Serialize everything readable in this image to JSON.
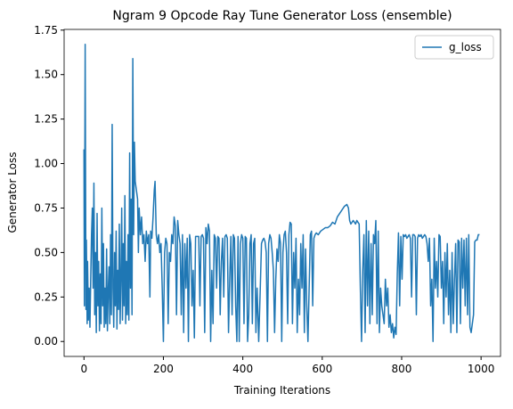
{
  "chart_data": {
    "type": "line",
    "title": "Ngram 9 Opcode Ray Tune Generator Loss (ensemble)",
    "x_label": "Training Iterations",
    "y_label": "Generator Loss",
    "legend": "upper right",
    "x": [
      0,
      1,
      3,
      5,
      6,
      8,
      9,
      11,
      13,
      15,
      17,
      19,
      21,
      23,
      25,
      27,
      29,
      31,
      33,
      35,
      37,
      39,
      41,
      43,
      45,
      47,
      49,
      51,
      53,
      55,
      57,
      59,
      61,
      63,
      65,
      67,
      69,
      71,
      73,
      75,
      77,
      79,
      81,
      83,
      85,
      87,
      89,
      91,
      93,
      95,
      97,
      99,
      101,
      103,
      105,
      107,
      109,
      111,
      113,
      115,
      117,
      119,
      121,
      123,
      125,
      127,
      129,
      132,
      135,
      137,
      139,
      142,
      145,
      148,
      151,
      154,
      157,
      160,
      163,
      166,
      168,
      171,
      174,
      177,
      179,
      182,
      185,
      188,
      191,
      194,
      197,
      200,
      203,
      206,
      209,
      212,
      215,
      218,
      221,
      224,
      227,
      230,
      233,
      236,
      239,
      242,
      245,
      248,
      251,
      254,
      257,
      260,
      263,
      266,
      269,
      272,
      275,
      278,
      281,
      285,
      289,
      292,
      295,
      298,
      301,
      304,
      307,
      310,
      313,
      316,
      319,
      322,
      325,
      328,
      331,
      334,
      337,
      340,
      343,
      346,
      349,
      352,
      355,
      358,
      361,
      364,
      367,
      370,
      373,
      376,
      379,
      382,
      385,
      388,
      391,
      394,
      397,
      400,
      403,
      406,
      409,
      412,
      415,
      418,
      421,
      424,
      427,
      430,
      433,
      436,
      440,
      444,
      447,
      450,
      453,
      456,
      459,
      462,
      465,
      468,
      471,
      474,
      477,
      480,
      483,
      486,
      489,
      492,
      495,
      498,
      501,
      504,
      507,
      510,
      513,
      516,
      519,
      522,
      525,
      528,
      531,
      534,
      537,
      540,
      543,
      546,
      549,
      552,
      555,
      558,
      561,
      564,
      567,
      570,
      573,
      576,
      579,
      582,
      585,
      590,
      596,
      602,
      608,
      614,
      620,
      626,
      632,
      638,
      644,
      650,
      656,
      662,
      666,
      669,
      672,
      675,
      678,
      681,
      684,
      687,
      690,
      693,
      696,
      699,
      702,
      705,
      708,
      711,
      714,
      717,
      720,
      723,
      726,
      729,
      732,
      735,
      738,
      741,
      744,
      747,
      750,
      753,
      756,
      759,
      762,
      765,
      768,
      771,
      774,
      777,
      780,
      783,
      786,
      789,
      792,
      795,
      798,
      801,
      804,
      807,
      810,
      813,
      816,
      819,
      822,
      825,
      828,
      831,
      834,
      837,
      840,
      843,
      846,
      849,
      852,
      855,
      858,
      861,
      864,
      867,
      870,
      873,
      876,
      879,
      882,
      885,
      888,
      891,
      894,
      897,
      900,
      903,
      906,
      909,
      912,
      915,
      918,
      921,
      924,
      927,
      930,
      933,
      936,
      939,
      942,
      945,
      948,
      951,
      954,
      957,
      960,
      963,
      966,
      969,
      972,
      975,
      978,
      981,
      984,
      987,
      990,
      993,
      996
    ],
    "series": [
      {
        "name": "g_loss",
        "color": "#1f77b4",
        "values": [
          1.08,
          0.2,
          1.67,
          0.18,
          0.57,
          0.1,
          0.45,
          0.12,
          0.3,
          0.08,
          0.35,
          0.6,
          0.75,
          0.3,
          0.89,
          0.15,
          0.5,
          0.05,
          0.72,
          0.2,
          0.45,
          0.06,
          0.38,
          0.1,
          0.75,
          0.2,
          0.55,
          0.08,
          0.3,
          0.1,
          0.52,
          0.06,
          0.28,
          0.42,
          0.1,
          0.6,
          0.15,
          1.22,
          0.3,
          0.08,
          0.5,
          0.2,
          0.62,
          0.07,
          0.4,
          0.18,
          0.66,
          0.1,
          0.35,
          0.75,
          0.12,
          0.55,
          0.2,
          0.82,
          0.1,
          0.45,
          0.15,
          0.6,
          0.12,
          1.06,
          0.3,
          0.8,
          0.15,
          1.59,
          0.6,
          1.12,
          0.9,
          0.85,
          0.8,
          0.5,
          0.75,
          0.6,
          0.7,
          0.55,
          0.6,
          0.45,
          0.62,
          0.55,
          0.6,
          0.25,
          0.62,
          0.58,
          0.7,
          0.85,
          0.9,
          0.6,
          0.55,
          0.6,
          0.5,
          0.55,
          0.3,
          0.0,
          0.5,
          0.58,
          0.55,
          0.1,
          0.5,
          0.45,
          0.6,
          0.55,
          0.7,
          0.65,
          0.15,
          0.68,
          0.6,
          0.55,
          0.15,
          0.6,
          0.05,
          0.55,
          0.3,
          0.58,
          0.0,
          0.6,
          0.55,
          0.2,
          0.4,
          0.02,
          0.59,
          0.59,
          0.59,
          0.2,
          0.59,
          0.6,
          0.58,
          0.05,
          0.64,
          0.55,
          0.66,
          0.62,
          0.0,
          0.4,
          0.1,
          0.6,
          0.58,
          0.3,
          0.59,
          0.58,
          0.15,
          0.45,
          0.58,
          0.25,
          0.59,
          0.6,
          0.58,
          0.05,
          0.35,
          0.59,
          0.15,
          0.6,
          0.58,
          0.2,
          0.0,
          0.59,
          0.0,
          0.55,
          0.6,
          0.58,
          0.1,
          0.59,
          0.58,
          0.0,
          0.15,
          0.55,
          0.6,
          0.1,
          0.55,
          0.58,
          0.05,
          0.3,
          0.0,
          0.3,
          0.55,
          0.57,
          0.58,
          0.56,
          0.5,
          0.0,
          0.55,
          0.6,
          0.58,
          0.5,
          0.4,
          0.05,
          0.35,
          0.52,
          0.45,
          0.6,
          0.55,
          0.0,
          0.5,
          0.6,
          0.62,
          0.5,
          0.1,
          0.6,
          0.67,
          0.66,
          0.1,
          0.5,
          0.3,
          0.58,
          0.05,
          0.35,
          0.15,
          0.55,
          0.3,
          0.6,
          0.05,
          0.52,
          0.2,
          0.0,
          0.3,
          0.6,
          0.62,
          0.2,
          0.58,
          0.6,
          0.61,
          0.6,
          0.62,
          0.63,
          0.64,
          0.64,
          0.65,
          0.67,
          0.66,
          0.7,
          0.72,
          0.74,
          0.76,
          0.77,
          0.75,
          0.68,
          0.66,
          0.67,
          0.68,
          0.67,
          0.66,
          0.68,
          0.67,
          0.66,
          0.3,
          0.0,
          0.4,
          0.6,
          0.05,
          0.68,
          0.2,
          0.62,
          0.1,
          0.55,
          0.15,
          0.6,
          0.55,
          0.68,
          0.1,
          0.62,
          0.05,
          0.3,
          0.2,
          0.15,
          0.1,
          0.35,
          0.2,
          0.3,
          0.08,
          0.15,
          0.05,
          0.1,
          0.02,
          0.08,
          0.04,
          0.38,
          0.61,
          0.2,
          0.59,
          0.35,
          0.6,
          0.59,
          0.6,
          0.58,
          0.59,
          0.6,
          0.58,
          0.25,
          0.6,
          0.6,
          0.59,
          0.15,
          0.58,
          0.6,
          0.59,
          0.6,
          0.58,
          0.59,
          0.6,
          0.59,
          0.55,
          0.45,
          0.58,
          0.2,
          0.35,
          0.0,
          0.58,
          0.3,
          0.45,
          0.25,
          0.6,
          0.59,
          0.3,
          0.45,
          0.1,
          0.5,
          0.25,
          0.55,
          0.15,
          0.4,
          0.05,
          0.5,
          0.1,
          0.35,
          0.55,
          0.05,
          0.57,
          0.56,
          0.1,
          0.58,
          0.3,
          0.57,
          0.2,
          0.58,
          0.15,
          0.6,
          0.08,
          0.05,
          0.1,
          0.15,
          0.56,
          0.57,
          0.57,
          0.6,
          0.6
        ]
      }
    ],
    "xlim": [
      -50,
      1049
    ],
    "xticks": [
      0,
      200,
      400,
      600,
      800,
      1000
    ],
    "ylim": [
      -0.084,
      1.754
    ],
    "yticks": [
      {
        "value": 0,
        "label": "0.00"
      },
      0.25,
      {
        "value": 0.5,
        "label": "0.50"
      },
      0.75,
      {
        "value": 1,
        "label": "1.00"
      },
      1.25,
      {
        "value": 1.5,
        "label": "1.50"
      },
      1.75
    ],
    "grid": false
  }
}
